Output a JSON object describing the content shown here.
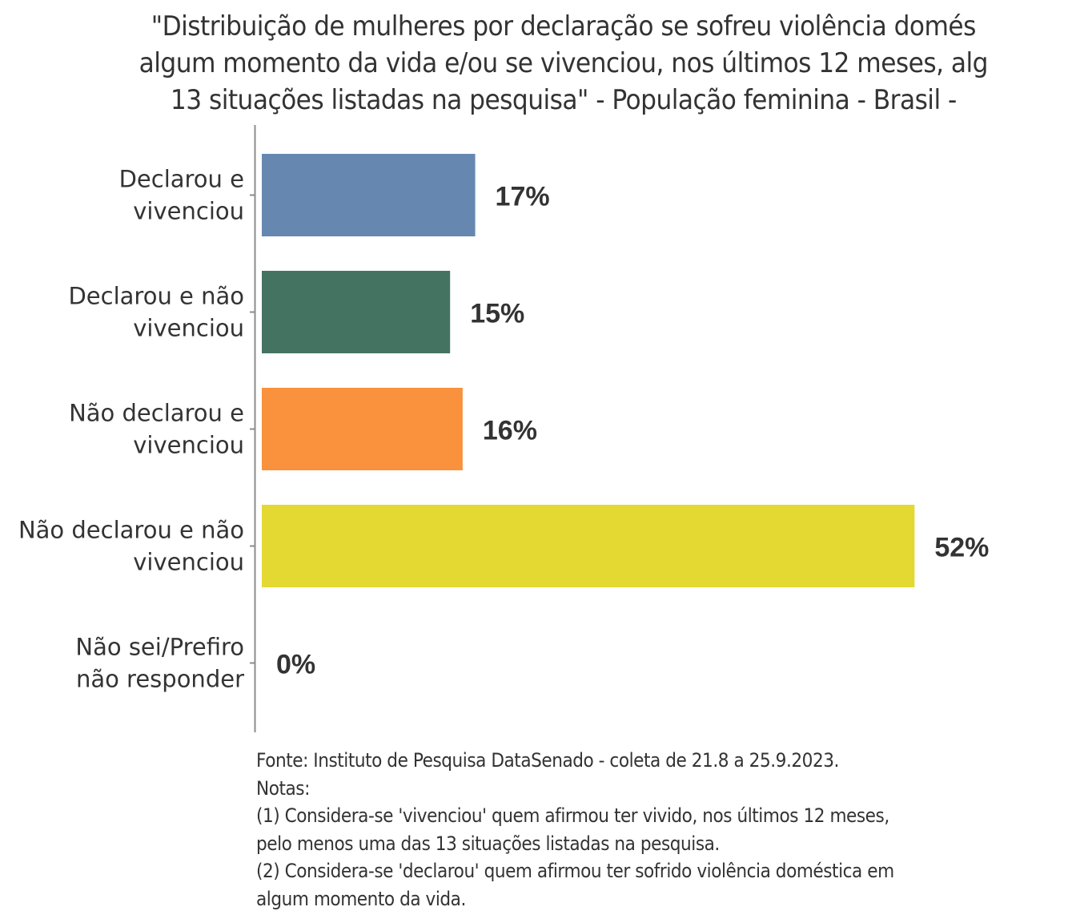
{
  "chart_data": {
    "type": "bar",
    "orientation": "horizontal",
    "title_lines": [
      "\"Distribuição de mulheres por declaração se sofreu violência domés",
      "algum momento da vida e/ou se vivenciou, nos últimos 12 meses, alg",
      "13 situações listadas na pesquisa\" - População feminina - Brasil -"
    ],
    "categories": [
      [
        "Declarou e",
        "vivenciou"
      ],
      [
        "Declarou e não",
        "vivenciou"
      ],
      [
        "Não declarou e",
        "vivenciou"
      ],
      [
        "Não declarou e não",
        "vivenciou"
      ],
      [
        "Não sei/Prefiro",
        "não responder"
      ]
    ],
    "values": [
      17,
      15,
      16,
      52,
      0
    ],
    "value_labels": [
      "17%",
      "15%",
      "16%",
      "52%",
      "0%"
    ],
    "colors": [
      "#6688b0",
      "#447461",
      "#f9913d",
      "#e4d833",
      "#cccccc"
    ],
    "xlabel": "",
    "ylabel": "",
    "xlim": [
      0,
      60
    ],
    "unit": "%",
    "grid": false,
    "legend": "none"
  },
  "footer": {
    "source": "Fonte: Instituto de Pesquisa DataSenado - coleta de 21.8 a 25.9.2023.",
    "notes_heading": "Notas:",
    "note1_line1": "(1) Considera-se 'vivenciou' quem afirmou ter vivido, nos últimos 12 meses,",
    "note1_line2": "pelo menos uma das 13 situações listadas na pesquisa.",
    "note2_line1": "(2) Considera-se 'declarou' quem afirmou ter sofrido violência doméstica em",
    "note2_line2": "algum momento da vida."
  }
}
